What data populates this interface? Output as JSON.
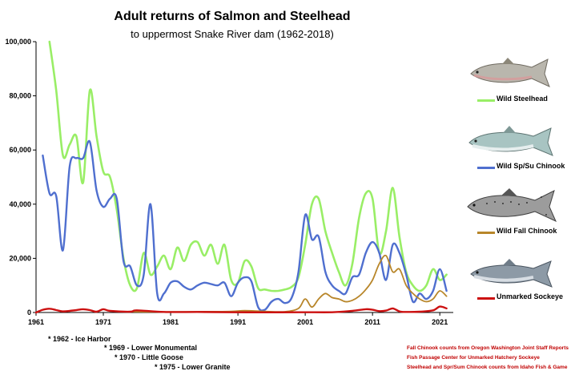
{
  "chart_data": {
    "type": "line",
    "title": "Adult returns of Salmon and Steelhead",
    "subtitle": "to uppermost Snake River dam (1962-2018)",
    "xlim": [
      1961,
      2023
    ],
    "ylim": [
      0,
      100000
    ],
    "x_ticks": [
      1961,
      1971,
      1981,
      1991,
      2001,
      2011,
      2021
    ],
    "y_ticks": [
      0,
      20000,
      40000,
      60000,
      80000,
      100000
    ],
    "y_tick_labels": [
      "0",
      "20,000",
      "40,000",
      "60,000",
      "80,000",
      "100,000"
    ],
    "grid": "none",
    "legend_position": "right",
    "series": [
      {
        "name": "Wild Steelhead",
        "color": "#99ee66",
        "x": [
          1963,
          1964,
          1965,
          1966,
          1967,
          1968,
          1969,
          1970,
          1971,
          1972,
          1973,
          1974,
          1975,
          1976,
          1977,
          1978,
          1979,
          1980,
          1981,
          1982,
          1983,
          1984,
          1985,
          1986,
          1987,
          1988,
          1989,
          1990,
          1991,
          1992,
          1993,
          1994,
          1995,
          1996,
          1997,
          1998,
          1999,
          2000,
          2001,
          2002,
          2003,
          2004,
          2005,
          2006,
          2007,
          2008,
          2009,
          2010,
          2011,
          2012,
          2013,
          2014,
          2015,
          2016,
          2017,
          2018,
          2019,
          2020,
          2021,
          2022
        ],
        "y": [
          100000,
          82000,
          58000,
          62000,
          65000,
          48000,
          82000,
          65000,
          52000,
          50000,
          38000,
          20000,
          10000,
          9000,
          22000,
          14000,
          17000,
          21000,
          16000,
          24000,
          19000,
          25000,
          26000,
          21000,
          25000,
          18000,
          25000,
          12000,
          11000,
          19000,
          17000,
          9000,
          8500,
          8000,
          8000,
          8500,
          9500,
          13000,
          25000,
          40000,
          42000,
          30000,
          22000,
          15000,
          10000,
          18000,
          35000,
          44000,
          42000,
          22000,
          30000,
          46000,
          28000,
          15000,
          10000,
          8000,
          10000,
          16000,
          12000,
          14000
        ]
      },
      {
        "name": "Wild Sp/Su Chinook",
        "color": "#4f6fcf",
        "x": [
          1962,
          1963,
          1964,
          1965,
          1966,
          1967,
          1968,
          1969,
          1970,
          1971,
          1972,
          1973,
          1974,
          1975,
          1976,
          1977,
          1978,
          1979,
          1980,
          1981,
          1982,
          1983,
          1984,
          1985,
          1986,
          1987,
          1988,
          1989,
          1990,
          1991,
          1992,
          1993,
          1994,
          1995,
          1996,
          1997,
          1998,
          1999,
          2000,
          2001,
          2002,
          2003,
          2004,
          2005,
          2006,
          2007,
          2008,
          2009,
          2010,
          2011,
          2012,
          2013,
          2014,
          2015,
          2016,
          2017,
          2018,
          2019,
          2020,
          2021,
          2022
        ],
        "y": [
          58000,
          44000,
          43000,
          23000,
          54000,
          57000,
          57000,
          63000,
          45000,
          39000,
          42000,
          42000,
          19000,
          17000,
          10000,
          14000,
          40000,
          7000,
          7000,
          11000,
          11500,
          9500,
          8500,
          10000,
          11000,
          10500,
          10000,
          11000,
          6000,
          11000,
          13000,
          11500,
          2000,
          1000,
          4000,
          5000,
          3500,
          5500,
          15000,
          36000,
          27000,
          28000,
          15000,
          10000,
          8000,
          7000,
          13000,
          14000,
          22000,
          26000,
          22000,
          12000,
          25000,
          22000,
          14000,
          4000,
          7000,
          5000,
          8000,
          16000,
          8000
        ]
      },
      {
        "name": "Wild Fall Chinook",
        "color": "#b8862a",
        "x": [
          1975,
          1980,
          1985,
          1990,
          1992,
          1995,
          1998,
          2000,
          2001,
          2002,
          2003,
          2004,
          2005,
          2006,
          2007,
          2008,
          2009,
          2010,
          2011,
          2012,
          2013,
          2014,
          2015,
          2016,
          2017,
          2018,
          2019,
          2020,
          2021,
          2022
        ],
        "y": [
          300,
          200,
          300,
          400,
          700,
          400,
          300,
          1500,
          5000,
          2000,
          5000,
          7000,
          5500,
          5000,
          4000,
          4500,
          6000,
          8500,
          12000,
          18000,
          21000,
          15000,
          16000,
          10000,
          7000,
          5000,
          4000,
          5000,
          8000,
          6000
        ]
      },
      {
        "name": "Unmarked Sockeye",
        "color": "#cc1111",
        "x": [
          1961,
          1962,
          1963,
          1964,
          1965,
          1966,
          1967,
          1968,
          1969,
          1970,
          1971,
          1972,
          1975,
          1976,
          1980,
          1985,
          1990,
          1995,
          2000,
          2005,
          2008,
          2010,
          2011,
          2012,
          2013,
          2014,
          2015,
          2016,
          2018,
          2020,
          2021,
          2022
        ],
        "y": [
          0,
          1000,
          1400,
          900,
          400,
          600,
          900,
          1200,
          900,
          300,
          1200,
          600,
          300,
          800,
          200,
          200,
          100,
          50,
          100,
          100,
          600,
          1200,
          1000,
          500,
          700,
          1500,
          400,
          200,
          300,
          800,
          2200,
          1500
        ]
      }
    ]
  },
  "legend": {
    "steelhead": "Wild Steelhead",
    "spsu": "Wild Sp/Su Chinook",
    "fall": "Wild Fall Chinook",
    "sockeye": "Unmarked Sockeye"
  },
  "dam_notes": [
    "* 1962 - Ice Harbor",
    "* 1969 - Lower Monumental",
    "* 1970 - Little Goose",
    "* 1975 - Lower Granite"
  ],
  "credits": [
    "Fall Chinook counts from Oregon Washington Joint Staff Reports",
    "Fish Passage Center for Unmarked Hatchery Sockeye",
    "Steelhead and Spr/Sum Chinook counts from Idaho Fish & Game"
  ],
  "fish_icons": [
    "steelhead-fish",
    "spring-chinook-fish",
    "fall-chinook-fish",
    "sockeye-fish"
  ]
}
